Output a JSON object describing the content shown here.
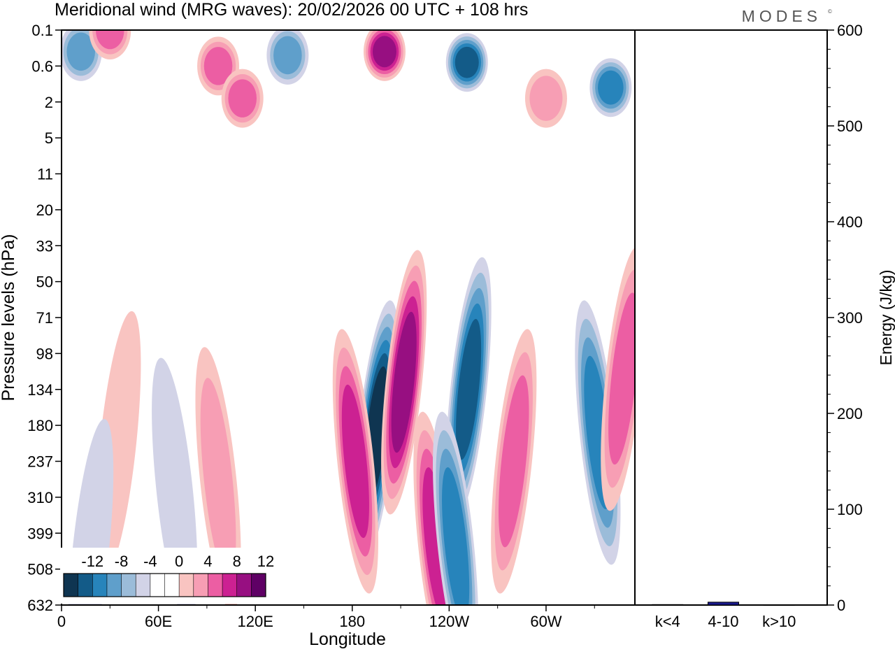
{
  "brand": "MODES",
  "chart_data": [
    {
      "type": "heatmap",
      "title": "Meridional wind (MRG waves):  20/02/2026  00 UTC  + 108 hrs",
      "xlabel": "Longitude",
      "ylabel": "Pressure levels (hPa)",
      "x_range_deg": [
        0,
        355
      ],
      "x_ticks": [
        {
          "deg": 0,
          "label": "0"
        },
        {
          "deg": 60,
          "label": "60E"
        },
        {
          "deg": 120,
          "label": "120E"
        },
        {
          "deg": 180,
          "label": "180"
        },
        {
          "deg": 240,
          "label": "120W"
        },
        {
          "deg": 300,
          "label": "60W"
        }
      ],
      "y_levels": [
        "0.1",
        "0.6",
        "2",
        "5",
        "11",
        "20",
        "33",
        "50",
        "71",
        "98",
        "134",
        "180",
        "237",
        "310",
        "399",
        "508",
        "632"
      ],
      "colorbar": {
        "labels": [
          "-12",
          "-8",
          "-4",
          "0",
          "4",
          "8",
          "12"
        ],
        "colors": [
          "#0f3551",
          "#135b88",
          "#2784bb",
          "#5f9fcb",
          "#9bbcd9",
          "#d2d3e7",
          "#ffffff",
          "#ffffff",
          "#f9c4c1",
          "#f79eb4",
          "#ec5ea3",
          "#cc2192",
          "#970f81",
          "#5f0065"
        ]
      },
      "features": [
        {
          "lon": 195,
          "level": 11.2,
          "value": -14
        },
        {
          "lon": 182,
          "level": 12.0,
          "value": 11
        },
        {
          "lon": 212,
          "level": 9.8,
          "value": 12
        },
        {
          "lon": 232,
          "level": 14.3,
          "value": 11
        },
        {
          "lon": 252,
          "level": 10.0,
          "value": -12
        },
        {
          "lon": 244,
          "level": 14.3,
          "value": -11
        },
        {
          "lon": 280,
          "level": 12.0,
          "value": 8
        },
        {
          "lon": 332,
          "level": 11.2,
          "value": -10
        },
        {
          "lon": 348,
          "level": 9.7,
          "value": 8
        },
        {
          "lon": 97,
          "level": 12.5,
          "value": 6
        },
        {
          "lon": 35,
          "level": 11.5,
          "value": 5
        },
        {
          "lon": 70,
          "level": 12.8,
          "value": -5
        },
        {
          "lon": 18,
          "level": 14.5,
          "value": -5
        },
        {
          "lon": 200,
          "level": 0.6,
          "value": 13
        },
        {
          "lon": 251,
          "level": 0.9,
          "value": -12
        },
        {
          "lon": 140,
          "level": 0.7,
          "value": -9
        },
        {
          "lon": 12,
          "level": 0.6,
          "value": -8
        },
        {
          "lon": 340,
          "level": 1.6,
          "value": -11
        },
        {
          "lon": 97,
          "level": 1.0,
          "value": 8
        },
        {
          "lon": 112,
          "level": 1.9,
          "value": 8
        },
        {
          "lon": 300,
          "level": 1.9,
          "value": 7
        },
        {
          "lon": 30,
          "level": 0.0,
          "value": 8
        }
      ]
    },
    {
      "type": "bar",
      "ylabel": "Energy (J/kg)",
      "ylim": [
        0,
        600
      ],
      "y_ticks": [
        0,
        100,
        200,
        300,
        400,
        500,
        600
      ],
      "categories": [
        "k<4",
        "4-10",
        "k>10"
      ],
      "values": [
        0.5,
        3,
        0.3
      ]
    }
  ]
}
